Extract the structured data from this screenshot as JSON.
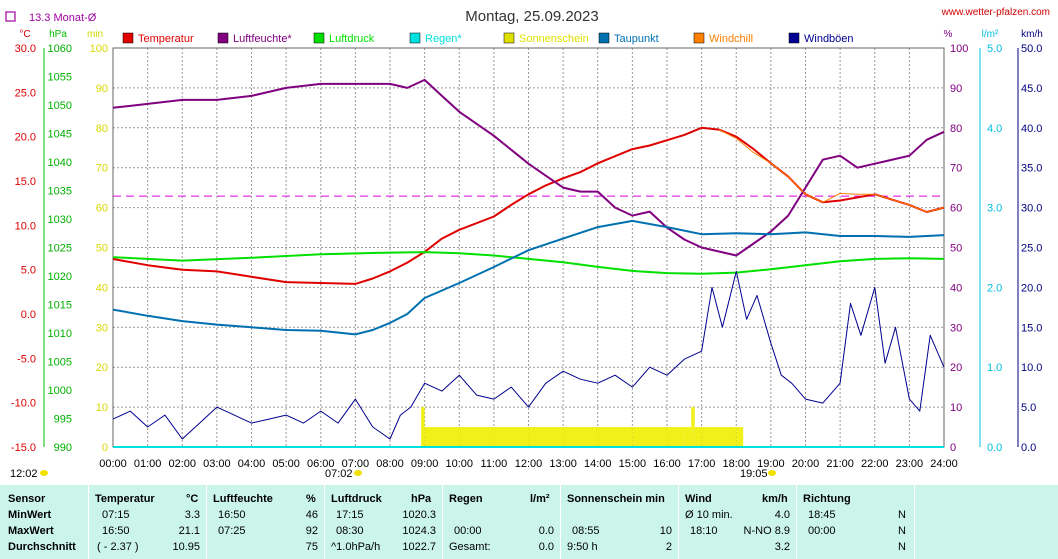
{
  "header": {
    "title": "Montag, 25.09.2023",
    "site": "www.wetter-pfalzen.com",
    "monthly_avg": "13.3 Monat-Ø"
  },
  "units_left": [
    "°C",
    "hPa",
    "min"
  ],
  "units_right": [
    "%",
    "l/m²",
    "km/h"
  ],
  "legend": [
    {
      "label": "Temperatur",
      "color": "#e00000"
    },
    {
      "label": "Luftfeuchte*",
      "color": "#800080"
    },
    {
      "label": "Luftdruck",
      "color": "#00e000"
    },
    {
      "label": "Regen*",
      "color": "#00e0e0"
    },
    {
      "label": "Sonnenschein",
      "color": "#e0e000"
    },
    {
      "label": "Taupunkt",
      "color": "#0070b0"
    },
    {
      "label": "Windchill",
      "color": "#ff8000"
    },
    {
      "label": "Windböen",
      "color": "#000090"
    }
  ],
  "axes": {
    "temp_ticks": [
      "30.0",
      "25.0",
      "20.0",
      "15.0",
      "10.0",
      "5.0",
      "0.0",
      "-5.0",
      "-10.0",
      "-15.0"
    ],
    "pressure_ticks": [
      "1060",
      "1055",
      "1050",
      "1045",
      "1040",
      "1035",
      "1030",
      "1025",
      "1020",
      "1015",
      "1010",
      "1005",
      "1000",
      "995",
      "990"
    ],
    "sun_ticks": [
      "100",
      "90",
      "80",
      "70",
      "60",
      "50",
      "40",
      "30",
      "20",
      "10",
      "0"
    ],
    "humidity_ticks": [
      "100",
      "90",
      "80",
      "70",
      "60",
      "50",
      "40",
      "30",
      "20",
      "10",
      "0"
    ],
    "rain_ticks": [
      "5.0",
      "4.0",
      "3.0",
      "2.0",
      "1.0",
      "0.0"
    ],
    "wind_ticks": [
      "50.0",
      "45.0",
      "40.0",
      "35.0",
      "30.0",
      "25.0",
      "20.0",
      "15.0",
      "10.0",
      "5.0",
      "0.0"
    ],
    "x_ticks": [
      "00:00",
      "01:00",
      "02:00",
      "03:00",
      "04:00",
      "05:00",
      "06:00",
      "07:00",
      "08:00",
      "09:00",
      "10:00",
      "11:00",
      "12:00",
      "13:00",
      "14:00",
      "15:00",
      "16:00",
      "17:00",
      "18:00",
      "19:00",
      "20:00",
      "21:00",
      "22:00",
      "23:00",
      "24:00"
    ]
  },
  "markers": {
    "sun_left": "12:02",
    "sunrise": "07:02",
    "sunset": "19:05"
  },
  "chart_data": {
    "type": "line",
    "title": "Montag, 25.09.2023",
    "x_unit": "hour of day",
    "xlim": [
      0,
      24
    ],
    "temp_ylim": [
      -15,
      30
    ],
    "monthly_mean_temp": 13.3,
    "series": [
      {
        "name": "Temperatur",
        "unit": "°C",
        "x": [
          0,
          1,
          2,
          3,
          4,
          5,
          6,
          7,
          7.5,
          8,
          8.5,
          9,
          9.5,
          10,
          11,
          11.5,
          12,
          12.5,
          13,
          13.5,
          14,
          14.5,
          15,
          15.5,
          16,
          16.5,
          17,
          17.5,
          18,
          18.5,
          19,
          19.5,
          20,
          20.5,
          21,
          22,
          23,
          23.5,
          24
        ],
        "values": [
          6.2,
          5.5,
          5.0,
          4.8,
          4.2,
          3.6,
          3.5,
          3.4,
          4.0,
          4.8,
          5.8,
          7.0,
          8.5,
          9.5,
          11.0,
          12.3,
          13.5,
          14.5,
          15.3,
          16.0,
          17.0,
          17.8,
          18.6,
          19.0,
          19.6,
          20.2,
          21.0,
          20.8,
          20.0,
          18.6,
          17.0,
          15.5,
          13.5,
          12.6,
          12.8,
          13.5,
          12.3,
          11.5,
          12.0
        ]
      },
      {
        "name": "Luftfeuchte*",
        "unit": "%",
        "x": [
          0,
          1,
          2,
          3,
          4,
          5,
          6,
          7,
          7.5,
          8,
          8.5,
          9,
          9.5,
          10,
          11,
          12,
          12.5,
          13,
          13.5,
          14,
          14.5,
          15,
          15.5,
          16,
          16.5,
          17,
          17.5,
          18,
          18.5,
          19,
          19.5,
          20,
          20.5,
          21,
          21.5,
          22,
          23,
          23.5,
          24
        ],
        "values": [
          85,
          86,
          87,
          87,
          88,
          90,
          91,
          91,
          91,
          91,
          90,
          92,
          88,
          84,
          78,
          71,
          68,
          65,
          64,
          64,
          60,
          58,
          59,
          55,
          52,
          50,
          49,
          48,
          51,
          54,
          58,
          65,
          72,
          73,
          70,
          71,
          73,
          77,
          79
        ]
      },
      {
        "name": "Luftdruck",
        "unit": "hPa",
        "x": [
          0,
          2,
          4,
          6,
          8,
          9,
          10,
          11,
          12,
          13,
          14,
          15,
          16,
          17,
          18,
          19,
          20,
          21,
          22,
          23,
          24
        ],
        "values": [
          1023.3,
          1022.7,
          1023.2,
          1023.8,
          1024.1,
          1024.2,
          1024.0,
          1023.6,
          1023.0,
          1022.4,
          1021.6,
          1020.9,
          1020.5,
          1020.4,
          1020.6,
          1021.2,
          1021.9,
          1022.6,
          1023.0,
          1023.1,
          1023.0
        ]
      },
      {
        "name": "Taupunkt",
        "unit": "°C",
        "x": [
          0,
          1,
          2,
          3,
          4,
          5,
          6,
          7,
          7.5,
          8,
          8.5,
          9,
          10,
          11,
          12,
          13,
          14,
          15,
          16,
          17,
          18,
          19,
          20,
          21,
          22,
          23,
          24
        ],
        "values": [
          0.5,
          -0.2,
          -0.8,
          -1.2,
          -1.5,
          -1.8,
          -1.9,
          -2.3,
          -1.8,
          -1.0,
          0.0,
          1.8,
          3.5,
          5.3,
          7.2,
          8.5,
          9.8,
          10.5,
          9.8,
          9.0,
          9.1,
          9.0,
          9.2,
          8.8,
          8.8,
          8.7,
          8.9
        ]
      },
      {
        "name": "Windchill",
        "unit": "°C",
        "x": [
          17.5,
          18,
          18.5,
          19,
          19.5,
          20,
          20.5,
          21,
          21.5,
          22,
          23,
          23.5,
          24
        ],
        "values": [
          20.8,
          19.8,
          18.2,
          17.0,
          15.5,
          13.5,
          12.6,
          13.6,
          13.5,
          13.5,
          12.3,
          11.5,
          12.0
        ]
      },
      {
        "name": "Windböen",
        "unit": "km/h",
        "x": [
          0,
          0.5,
          1,
          1.5,
          2,
          2.5,
          3,
          3.5,
          4,
          4.5,
          5,
          5.5,
          6,
          6.5,
          7,
          7.5,
          8,
          8.3,
          8.6,
          9,
          9.5,
          10,
          10.5,
          11,
          11.5,
          12,
          12.5,
          13,
          13.5,
          14,
          14.5,
          15,
          15.5,
          16,
          16.5,
          17,
          17.3,
          17.6,
          18,
          18.3,
          18.6,
          19,
          19.3,
          19.6,
          20,
          20.5,
          21,
          21.3,
          21.6,
          22,
          22.3,
          22.6,
          23,
          23.3,
          23.6,
          24
        ],
        "values": [
          3.5,
          4.5,
          2.5,
          4.0,
          1.0,
          3.0,
          5.0,
          4.0,
          3.0,
          3.5,
          4.0,
          3.0,
          4.5,
          3.0,
          6.0,
          2.5,
          1.0,
          4.0,
          5.0,
          8.0,
          7.0,
          9.0,
          6.5,
          6.0,
          7.5,
          5.0,
          8.0,
          9.5,
          8.5,
          8.0,
          9.0,
          7.5,
          10.0,
          9.0,
          11.0,
          12.0,
          20.0,
          15.0,
          22.0,
          16.0,
          19.0,
          13.0,
          9.0,
          8.0,
          6.0,
          5.5,
          8.0,
          18.0,
          14.0,
          20.0,
          10.5,
          15.0,
          6.0,
          4.5,
          14.0,
          10.0
        ]
      },
      {
        "name": "Sonnenschein",
        "unit": "min",
        "x": [
          8.9,
          9.0,
          12.0,
          15.0,
          16.5,
          16.7,
          16.8,
          17.0,
          18.0,
          18.2
        ],
        "values": [
          10,
          5,
          5,
          5,
          5,
          10,
          5,
          5,
          5,
          5
        ]
      },
      {
        "name": "Regen*",
        "unit": "l/m²",
        "x": [
          0,
          24
        ],
        "values": [
          0,
          0
        ]
      }
    ]
  },
  "stats": {
    "headers": {
      "sensor": "Sensor",
      "temp": "Temperatur",
      "temp_unit": "°C",
      "hum": "Luftfeuchte",
      "hum_unit": "%",
      "press": "Luftdruck",
      "press_unit": "hPa",
      "rain": "Regen",
      "rain_unit": "l/m²",
      "sun": "Sonnenschein min",
      "wind": "Wind",
      "wind_unit": "km/h",
      "dir": "Richtung"
    },
    "rows": [
      {
        "label": "MinWert",
        "temp_t": "07:15",
        "temp_v": "3.3",
        "hum_t": "16:50",
        "hum_v": "46",
        "press_t": "17:15",
        "press_v": "1020.3",
        "rain_t": "",
        "rain_v": "",
        "sun_t": "",
        "sun_v": "",
        "wind_t": "Ø 10 min.",
        "wind_v": "4.0",
        "dir_t": "18:45",
        "dir_v": "N"
      },
      {
        "label": "MaxWert",
        "temp_t": "16:50",
        "temp_v": "21.1",
        "hum_t": "07:25",
        "hum_v": "92",
        "press_t": "08:30",
        "press_v": "1024.3",
        "rain_t": "00:00",
        "rain_v": "0.0",
        "sun_t": "08:55",
        "sun_v": "10",
        "wind_t": "18:10",
        "wind_v": "N-NO 8.9",
        "dir_t": "00:00",
        "dir_v": "N"
      },
      {
        "label": "Durchschnitt",
        "temp_t": "( - 2.37 )",
        "temp_v": "10.95",
        "hum_t": "",
        "hum_v": "75",
        "press_t": "^1.0hPa/h",
        "press_v": "1022.7",
        "rain_t": "Gesamt:",
        "rain_v": "0.0",
        "sun_t": "9:50 h",
        "sun_v": "2",
        "wind_t": "",
        "wind_v": "3.2",
        "dir_t": "",
        "dir_v": "N"
      }
    ]
  }
}
